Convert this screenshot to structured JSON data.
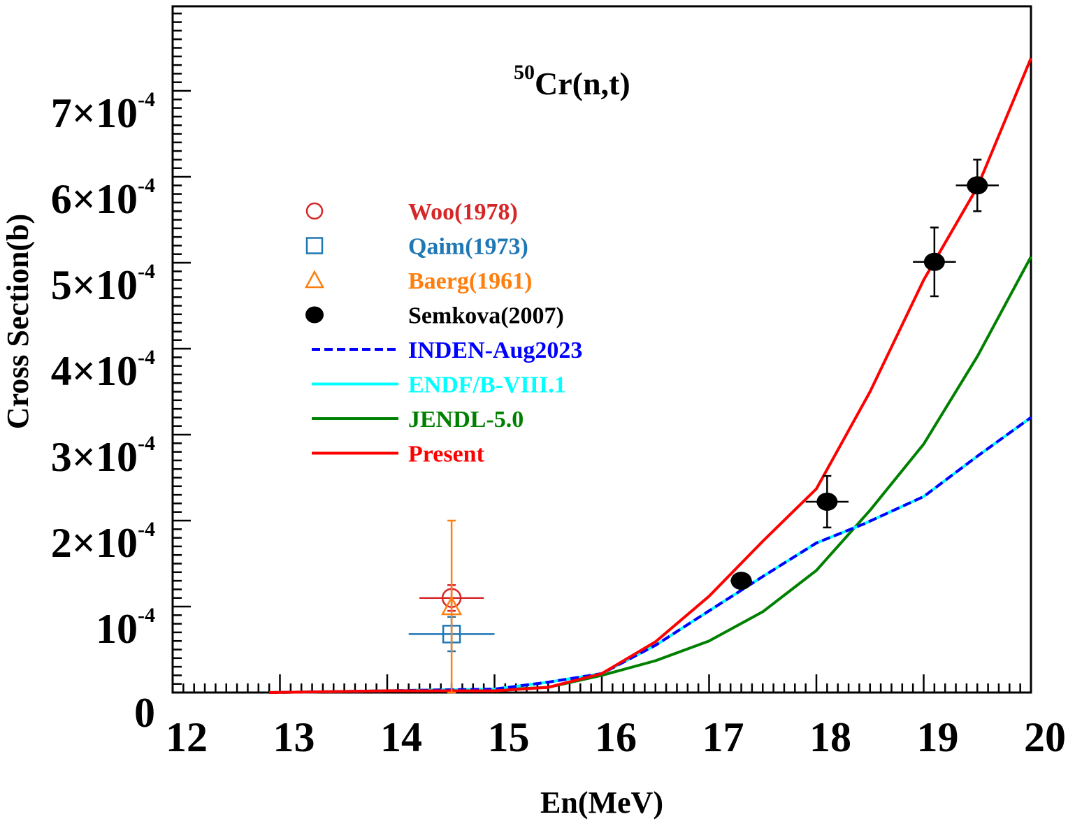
{
  "chart_data": {
    "type": "line",
    "title": "50Cr(n,t)",
    "title_parts": {
      "superscript": "50",
      "main": "Cr(n,t)"
    },
    "xlabel": "En(MeV)",
    "ylabel": "Cross Section(b)",
    "xlim": [
      12,
      20
    ],
    "ylim": [
      0,
      0.00079
    ],
    "grid": false,
    "legend_position": "center-left",
    "x_ticks": [
      12,
      13,
      14,
      15,
      16,
      17,
      18,
      19,
      20
    ],
    "x_tick_labels": [
      "12",
      "13",
      "14",
      "15",
      "16",
      "17",
      "18",
      "19",
      "20"
    ],
    "y_ticks": [
      0,
      0.0001,
      0.0002,
      0.0003,
      0.0004,
      0.0005,
      0.0006,
      0.0007
    ],
    "y_tick_labels": [
      {
        "base": "0",
        "exp": ""
      },
      {
        "base": "10",
        "exp": "-4"
      },
      {
        "base": "2×10",
        "exp": "-4"
      },
      {
        "base": "3×10",
        "exp": "-4"
      },
      {
        "base": "4×10",
        "exp": "-4"
      },
      {
        "base": "5×10",
        "exp": "-4"
      },
      {
        "base": "6×10",
        "exp": "-4"
      },
      {
        "base": "7×10",
        "exp": "-4"
      }
    ],
    "experimental": [
      {
        "name": "Woo(1978)",
        "marker": "open-circle",
        "color": "#d62728",
        "points": [
          {
            "x": 14.6,
            "y": 0.00011,
            "xerr": 0.3,
            "yerr_up": 1.5e-05,
            "yerr_down": 1.5e-05
          }
        ]
      },
      {
        "name": "Qaim(1973)",
        "marker": "open-square",
        "color": "#1f77b4",
        "points": [
          {
            "x": 14.6,
            "y": 6.8e-05,
            "xerr": 0.4,
            "yerr_up": 2e-05,
            "yerr_down": 2e-05
          }
        ]
      },
      {
        "name": "Baerg(1961)",
        "marker": "open-triangle",
        "color": "#ff7f0e",
        "points": [
          {
            "x": 14.6,
            "y": 0.0001,
            "xerr": 0,
            "yerr_up": 0.0001,
            "yerr_down": 0.0001
          }
        ]
      },
      {
        "name": "Semkova(2007)",
        "marker": "filled-circle",
        "color": "#000000",
        "points": [
          {
            "x": 17.3,
            "y": 0.00013,
            "xerr": 0.1,
            "yerr_up": 8e-06,
            "yerr_down": 8e-06
          },
          {
            "x": 18.1,
            "y": 0.000222,
            "xerr": 0.2,
            "yerr_up": 3e-05,
            "yerr_down": 3e-05
          },
          {
            "x": 19.1,
            "y": 0.000501,
            "xerr": 0.2,
            "yerr_up": 4e-05,
            "yerr_down": 4e-05
          },
          {
            "x": 19.5,
            "y": 0.00059,
            "xerr": 0.2,
            "yerr_up": 3e-05,
            "yerr_down": 3e-05
          }
        ]
      }
    ],
    "series": [
      {
        "name": "ENDF/B-VIII.1",
        "color": "#00ffff",
        "style": "solid",
        "x": [
          12.9,
          13.5,
          14.0,
          14.5,
          15.0,
          15.5,
          16.0,
          16.5,
          17.0,
          17.5,
          18.0,
          18.44,
          19.0,
          19.5,
          20.0
        ],
        "y": [
          0.0,
          1e-06,
          2e-06,
          3e-06,
          4e-06,
          1.2e-05,
          2.2e-05,
          5.5e-05,
          9.5e-05,
          0.000135,
          0.000174,
          0.000196,
          0.000228,
          0.000275,
          0.00032
        ]
      },
      {
        "name": "INDEN-Aug2023",
        "color": "#0000ff",
        "style": "dashed",
        "x": [
          12.9,
          13.5,
          14.0,
          14.5,
          15.0,
          15.5,
          16.0,
          16.5,
          17.0,
          17.5,
          18.0,
          18.44,
          19.0,
          19.5,
          20.0
        ],
        "y": [
          0.0,
          1e-06,
          2e-06,
          3e-06,
          4e-06,
          1.2e-05,
          2.2e-05,
          5.5e-05,
          9.5e-05,
          0.000135,
          0.000174,
          0.000196,
          0.000228,
          0.000275,
          0.00032
        ]
      },
      {
        "name": "JENDL-5.0",
        "color": "#008000",
        "style": "solid",
        "x": [
          12.9,
          13.5,
          14.0,
          14.5,
          15.0,
          15.5,
          16.0,
          16.5,
          17.0,
          17.5,
          18.0,
          18.5,
          19.0,
          19.5,
          20.0
        ],
        "y": [
          0.0,
          1e-06,
          2e-06,
          3e-06,
          3e-06,
          6e-06,
          2e-05,
          3.7e-05,
          6e-05,
          9.4e-05,
          0.000142,
          0.000212,
          0.000289,
          0.000391,
          0.000507
        ]
      },
      {
        "name": "Present",
        "color": "#ff0000",
        "style": "solid",
        "x": [
          12.9,
          13.5,
          14.0,
          14.5,
          15.0,
          15.5,
          16.0,
          16.5,
          17.0,
          17.5,
          18.0,
          18.5,
          19.0,
          19.5,
          20.0
        ],
        "y": [
          0.0,
          1e-06,
          2e-06,
          2e-06,
          2e-06,
          6e-06,
          2.2e-05,
          5.9e-05,
          0.000112,
          0.000176,
          0.000237,
          0.00035,
          0.00048,
          0.000588,
          0.000738
        ]
      }
    ],
    "legend": [
      {
        "label": "Woo(1978)",
        "color": "#d62728",
        "marker": "open-circle"
      },
      {
        "label": "Qaim(1973)",
        "color": "#1f77b4",
        "marker": "open-square"
      },
      {
        "label": "Baerg(1961)",
        "color": "#ff7f0e",
        "marker": "open-triangle"
      },
      {
        "label": "Semkova(2007)",
        "color": "#000000",
        "marker": "filled-circle"
      },
      {
        "label": "INDEN-Aug2023",
        "color": "#0000ff",
        "marker": "dashed-line"
      },
      {
        "label": "ENDF/B-VIII.1",
        "color": "#00ffff",
        "marker": "solid-line"
      },
      {
        "label": "JENDL-5.0",
        "color": "#008000",
        "marker": "solid-line"
      },
      {
        "label": "Present",
        "color": "#ff0000",
        "marker": "solid-line"
      }
    ]
  }
}
